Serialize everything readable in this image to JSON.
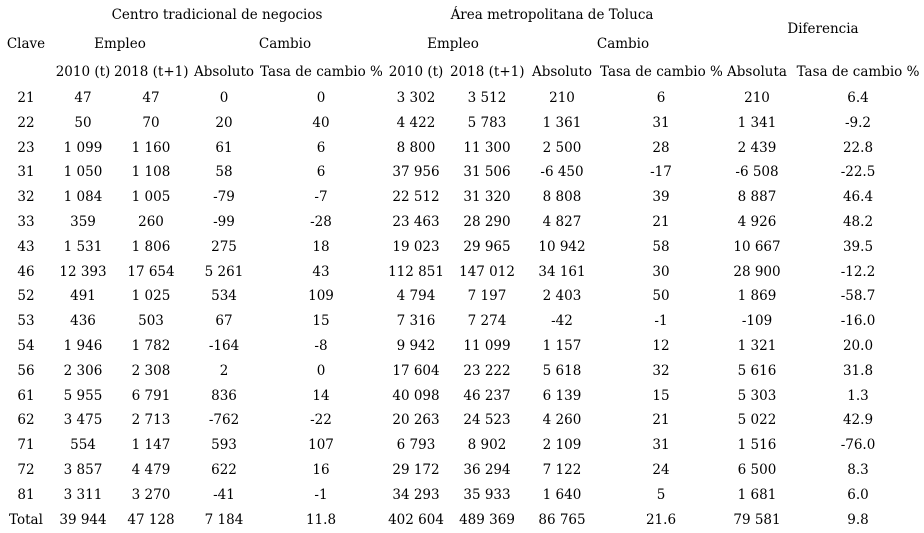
{
  "table": {
    "groups": [
      {
        "label": "Centro tradicional de negocios"
      },
      {
        "label": "Área metropolitana de Toluca"
      },
      {
        "label": "Diferencia"
      }
    ],
    "clave_header": "Clave",
    "subheaders": {
      "empleo_ctn": "Empleo",
      "cambio_ctn": "Cambio",
      "empleo_amt": "Empleo",
      "cambio_amt": "Cambio"
    },
    "columns": [
      "2010 (t)",
      "2018 (t+1)",
      "Absoluto",
      "Tasa de cambio %",
      "2010 (t)",
      "2018 (t+1)",
      "Absoluto",
      "Tasa de cambio %",
      "Absoluta",
      "Tasa de cambio %"
    ],
    "rows": [
      {
        "clave": "21",
        "values": [
          "47",
          "47",
          "0",
          "0",
          "3 302",
          "3 512",
          "210",
          "6",
          "210",
          "6.4"
        ]
      },
      {
        "clave": "22",
        "values": [
          "50",
          "70",
          "20",
          "40",
          "4 422",
          "5 783",
          "1 361",
          "31",
          "1 341",
          "-9.2"
        ]
      },
      {
        "clave": "23",
        "values": [
          "1 099",
          "1 160",
          "61",
          "6",
          "8 800",
          "11 300",
          "2 500",
          "28",
          "2 439",
          "22.8"
        ]
      },
      {
        "clave": "31",
        "values": [
          "1 050",
          "1 108",
          "58",
          "6",
          "37 956",
          "31 506",
          "-6 450",
          "-17",
          "-6 508",
          "-22.5"
        ]
      },
      {
        "clave": "32",
        "values": [
          "1 084",
          "1 005",
          "-79",
          "-7",
          "22 512",
          "31 320",
          "8 808",
          "39",
          "8 887",
          "46.4"
        ]
      },
      {
        "clave": "33",
        "values": [
          "359",
          "260",
          "-99",
          "-28",
          "23 463",
          "28 290",
          "4 827",
          "21",
          "4 926",
          "48.2"
        ]
      },
      {
        "clave": "43",
        "values": [
          "1 531",
          "1 806",
          "275",
          "18",
          "19 023",
          "29 965",
          "10 942",
          "58",
          "10 667",
          "39.5"
        ]
      },
      {
        "clave": "46",
        "values": [
          "12 393",
          "17 654",
          "5 261",
          "43",
          "112 851",
          "147 012",
          "34 161",
          "30",
          "28 900",
          "-12.2"
        ]
      },
      {
        "clave": "52",
        "values": [
          "491",
          "1 025",
          "534",
          "109",
          "4 794",
          "7 197",
          "2 403",
          "50",
          "1 869",
          "-58.7"
        ]
      },
      {
        "clave": "53",
        "values": [
          "436",
          "503",
          "67",
          "15",
          "7 316",
          "7 274",
          "-42",
          "-1",
          "-109",
          "-16.0"
        ]
      },
      {
        "clave": "54",
        "values": [
          "1 946",
          "1 782",
          "-164",
          "-8",
          "9 942",
          "11 099",
          "1 157",
          "12",
          "1 321",
          "20.0"
        ]
      },
      {
        "clave": "56",
        "values": [
          "2 306",
          "2 308",
          "2",
          "0",
          "17 604",
          "23 222",
          "5 618",
          "32",
          "5 616",
          "31.8"
        ]
      },
      {
        "clave": "61",
        "values": [
          "5 955",
          "6 791",
          "836",
          "14",
          "40 098",
          "46 237",
          "6 139",
          "15",
          "5 303",
          "1.3"
        ]
      },
      {
        "clave": "62",
        "values": [
          "3 475",
          "2 713",
          "-762",
          "-22",
          "20 263",
          "24 523",
          "4 260",
          "21",
          "5 022",
          "42.9"
        ]
      },
      {
        "clave": "71",
        "values": [
          "554",
          "1 147",
          "593",
          "107",
          "6 793",
          "8 902",
          "2 109",
          "31",
          "1 516",
          "-76.0"
        ]
      },
      {
        "clave": "72",
        "values": [
          "3 857",
          "4 479",
          "622",
          "16",
          "29 172",
          "36 294",
          "7 122",
          "24",
          "6 500",
          "8.3"
        ]
      },
      {
        "clave": "81",
        "values": [
          "3 311",
          "3 270",
          "-41",
          "-1",
          "34 293",
          "35 933",
          "1 640",
          "5",
          "1 681",
          "6.0"
        ]
      },
      {
        "clave": "Total",
        "values": [
          "39 944",
          "47 128",
          "7 184",
          "11.8",
          "402 604",
          "489 369",
          "86 765",
          "21.6",
          "79 581",
          "9.8"
        ]
      }
    ]
  },
  "chart_data": {
    "type": "table",
    "title": "",
    "column_groups": [
      "Centro tradicional de negocios",
      "Área metropolitana de Toluca",
      "Diferencia"
    ],
    "columns": [
      "Clave",
      "CTN 2010 (t)",
      "CTN 2018 (t+1)",
      "CTN Cambio Absoluto",
      "CTN Tasa de cambio %",
      "AMT 2010 (t)",
      "AMT 2018 (t+1)",
      "AMT Cambio Absoluto",
      "AMT Tasa de cambio %",
      "Diferencia Absoluta",
      "Diferencia Tasa de cambio %"
    ],
    "rows": [
      [
        "21",
        47,
        47,
        0,
        0,
        3302,
        3512,
        210,
        6,
        210,
        6.4
      ],
      [
        "22",
        50,
        70,
        20,
        40,
        4422,
        5783,
        1361,
        31,
        1341,
        -9.2
      ],
      [
        "23",
        1099,
        1160,
        61,
        6,
        8800,
        11300,
        2500,
        28,
        2439,
        22.8
      ],
      [
        "31",
        1050,
        1108,
        58,
        6,
        37956,
        31506,
        -6450,
        -17,
        -6508,
        -22.5
      ],
      [
        "32",
        1084,
        1005,
        -79,
        -7,
        22512,
        31320,
        8808,
        39,
        8887,
        46.4
      ],
      [
        "33",
        359,
        260,
        -99,
        -28,
        23463,
        28290,
        4827,
        21,
        4926,
        48.2
      ],
      [
        "43",
        1531,
        1806,
        275,
        18,
        19023,
        29965,
        10942,
        58,
        10667,
        39.5
      ],
      [
        "46",
        12393,
        17654,
        5261,
        43,
        112851,
        147012,
        34161,
        30,
        28900,
        -12.2
      ],
      [
        "52",
        491,
        1025,
        534,
        109,
        4794,
        7197,
        2403,
        50,
        1869,
        -58.7
      ],
      [
        "53",
        436,
        503,
        67,
        15,
        7316,
        7274,
        -42,
        -1,
        -109,
        -16.0
      ],
      [
        "54",
        1946,
        1782,
        -164,
        -8,
        9942,
        11099,
        1157,
        12,
        1321,
        20.0
      ],
      [
        "56",
        2306,
        2308,
        2,
        0,
        17604,
        23222,
        5618,
        32,
        5616,
        31.8
      ],
      [
        "61",
        5955,
        6791,
        836,
        14,
        40098,
        46237,
        6139,
        15,
        5303,
        1.3
      ],
      [
        "62",
        3475,
        2713,
        -762,
        -22,
        20263,
        24523,
        4260,
        21,
        5022,
        42.9
      ],
      [
        "71",
        554,
        1147,
        593,
        107,
        6793,
        8902,
        2109,
        31,
        1516,
        -76.0
      ],
      [
        "72",
        3857,
        4479,
        622,
        16,
        29172,
        36294,
        7122,
        24,
        6500,
        8.3
      ],
      [
        "81",
        3311,
        3270,
        -41,
        -1,
        34293,
        35933,
        1640,
        5,
        1681,
        6.0
      ],
      [
        "Total",
        39944,
        47128,
        7184,
        11.8,
        402604,
        489369,
        86765,
        21.6,
        79581,
        9.8
      ]
    ]
  }
}
